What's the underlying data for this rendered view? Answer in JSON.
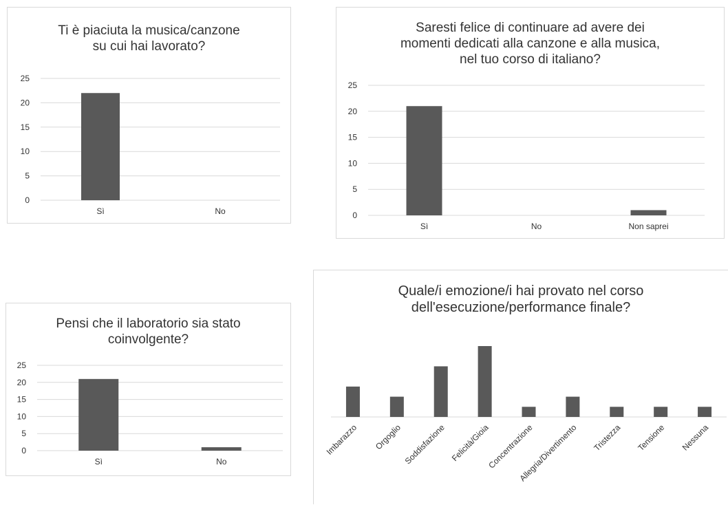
{
  "colors": {
    "bar": "#595959",
    "grid": "#d9d9d9",
    "text": "#333333",
    "border": "#d9d9d9"
  },
  "charts": [
    {
      "title_lines": [
        "Ti è piaciuta la musica/canzone",
        "su cui hai lavorato?"
      ],
      "chart_data": {
        "type": "bar",
        "categories": [
          "Sì",
          "No"
        ],
        "values": [
          22,
          0
        ],
        "yticks": [
          0,
          5,
          10,
          15,
          20,
          25
        ],
        "ylim": [
          0,
          25
        ],
        "grid": true
      }
    },
    {
      "title_lines": [
        "Saresti felice di continuare ad avere dei",
        "momenti dedicati alla canzone e alla musica,",
        "nel tuo corso di italiano?"
      ],
      "chart_data": {
        "type": "bar",
        "categories": [
          "Sì",
          "No",
          "Non saprei"
        ],
        "values": [
          21,
          0,
          1
        ],
        "yticks": [
          0,
          5,
          10,
          15,
          20,
          25
        ],
        "ylim": [
          0,
          25
        ],
        "grid": true
      }
    },
    {
      "title_lines": [
        "Pensi che il laboratorio sia stato",
        "coinvolgente?"
      ],
      "chart_data": {
        "type": "bar",
        "categories": [
          "Sì",
          "No"
        ],
        "values": [
          21,
          1
        ],
        "yticks": [
          0,
          5,
          10,
          15,
          20,
          25
        ],
        "ylim": [
          0,
          25
        ],
        "grid": true
      }
    },
    {
      "title_lines": [
        "Quale/i emozione/i hai provato nel corso",
        "dell'esecuzione/performance finale?"
      ],
      "chart_data": {
        "type": "bar",
        "categories": [
          "Imbarazzo",
          "Orgoglio",
          "Soddisfazione",
          "Felicità/Gioia",
          "Concentrazione",
          "Allegria/Divertimento",
          "Tristezza",
          "Tensione",
          "Nessuna"
        ],
        "values": [
          3,
          2,
          5,
          7,
          1,
          2,
          1,
          1,
          1
        ],
        "ylim": [
          0,
          7
        ],
        "grid": false,
        "tick_rotation": -45
      }
    }
  ]
}
